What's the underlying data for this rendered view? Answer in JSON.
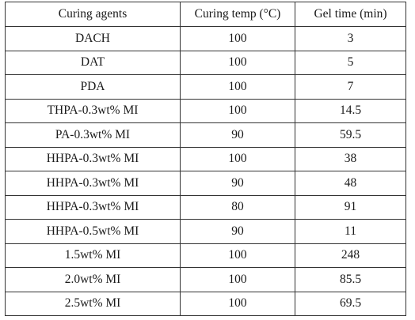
{
  "table": {
    "headers": [
      "Curing agents",
      "Curing temp (°C)",
      "Gel time (min)"
    ],
    "rows": [
      [
        "DACH",
        "100",
        "3"
      ],
      [
        "DAT",
        "100",
        "5"
      ],
      [
        "PDA",
        "100",
        "7"
      ],
      [
        "THPA-0.3wt% MI",
        "100",
        "14.5"
      ],
      [
        "PA-0.3wt% MI",
        "90",
        "59.5"
      ],
      [
        "HHPA-0.3wt% MI",
        "100",
        "38"
      ],
      [
        "HHPA-0.3wt% MI",
        "90",
        "48"
      ],
      [
        "HHPA-0.3wt% MI",
        "80",
        "91"
      ],
      [
        "HHPA-0.5wt% MI",
        "90",
        "11"
      ],
      [
        "1.5wt% MI",
        "100",
        "248"
      ],
      [
        "2.0wt% MI",
        "100",
        "85.5"
      ],
      [
        "2.5wt% MI",
        "100",
        "69.5"
      ]
    ]
  }
}
